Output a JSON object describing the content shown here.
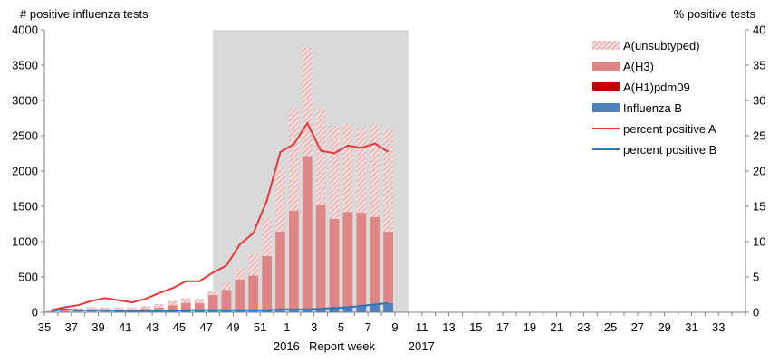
{
  "chart_data": {
    "type": "bar",
    "left_axis_title": "# positive influenza tests",
    "right_axis_title": "% positive tests",
    "xlabel": "Report  week",
    "year_labels": [
      "2016",
      "2017"
    ],
    "ylim": [
      0,
      4000
    ],
    "y_ticks": [
      0,
      500,
      1000,
      1500,
      2000,
      2500,
      3000,
      3500,
      4000
    ],
    "y2lim": [
      0,
      40
    ],
    "y2_ticks": [
      0,
      5,
      10,
      15,
      20,
      25,
      30,
      35,
      40
    ],
    "x_tick_labels": [
      "35",
      "37",
      "39",
      "41",
      "43",
      "45",
      "47",
      "49",
      "51",
      "1",
      "3",
      "5",
      "7",
      "9",
      "11",
      "13",
      "15",
      "17",
      "19",
      "21",
      "23",
      "25",
      "27",
      "29",
      "31",
      "33"
    ],
    "weeks": [
      "35",
      "36",
      "37",
      "38",
      "39",
      "40",
      "41",
      "42",
      "43",
      "44",
      "45",
      "46",
      "47",
      "48",
      "49",
      "50",
      "51",
      "52",
      "1",
      "2",
      "3",
      "4",
      "5",
      "6",
      "7",
      "8",
      "9",
      "10",
      "11",
      "12",
      "13",
      "14",
      "15",
      "16",
      "17",
      "18",
      "19",
      "20",
      "21",
      "22",
      "23",
      "24",
      "25",
      "26",
      "27",
      "28",
      "29",
      "30",
      "31",
      "32",
      "33",
      "34"
    ],
    "shaded_region": [
      "47",
      "10"
    ],
    "series": [
      {
        "name": "A(unsubtyped)",
        "kind": "bar",
        "color": "#d99694",
        "values": [
          15,
          20,
          25,
          35,
          30,
          30,
          30,
          40,
          50,
          60,
          70,
          60,
          60,
          100,
          150,
          300,
          550,
          900,
          1450,
          1530,
          1350,
          1320,
          1250,
          1200,
          1300,
          1450,
          null,
          null,
          null,
          null,
          null,
          null,
          null,
          null,
          null,
          null,
          null,
          null,
          null,
          null,
          null,
          null,
          null,
          null,
          null,
          null,
          null,
          null,
          null,
          null,
          null,
          null
        ]
      },
      {
        "name": "A(H3)",
        "kind": "bar",
        "color": "#de8585",
        "values": [
          10,
          15,
          25,
          30,
          30,
          30,
          30,
          40,
          50,
          80,
          100,
          100,
          220,
          290,
          440,
          490,
          770,
          1100,
          1400,
          2170,
          1470,
          1260,
          1350,
          1320,
          1250,
          1010,
          null,
          null,
          null,
          null,
          null,
          null,
          null,
          null,
          null,
          null,
          null,
          null,
          null,
          null,
          null,
          null,
          null,
          null,
          null,
          null,
          null,
          null,
          null,
          null,
          null,
          null
        ]
      },
      {
        "name": "A(H1)pdm09",
        "kind": "bar",
        "color": "#c00000",
        "values": [
          0,
          0,
          0,
          0,
          0,
          0,
          0,
          0,
          0,
          0,
          0,
          0,
          0,
          0,
          0,
          0,
          0,
          0,
          0,
          0,
          0,
          0,
          0,
          0,
          0,
          0,
          null,
          null,
          null,
          null,
          null,
          null,
          null,
          null,
          null,
          null,
          null,
          null,
          null,
          null,
          null,
          null,
          null,
          null,
          null,
          null,
          null,
          null,
          null,
          null,
          null,
          null
        ]
      },
      {
        "name": "Influenza B",
        "kind": "bar",
        "color": "#4f81bd",
        "values": [
          5,
          10,
          10,
          10,
          10,
          10,
          10,
          10,
          15,
          20,
          30,
          30,
          25,
          25,
          25,
          30,
          25,
          40,
          40,
          40,
          50,
          60,
          70,
          90,
          100,
          130,
          null,
          null,
          null,
          null,
          null,
          null,
          null,
          null,
          null,
          null,
          null,
          null,
          null,
          null,
          null,
          null,
          null,
          null,
          null,
          null,
          null,
          null,
          null,
          null,
          null,
          null
        ]
      },
      {
        "name": "percent positive A",
        "kind": "line",
        "color": "#e03a3a",
        "values": [
          0.3,
          0.7,
          1.0,
          1.6,
          2.0,
          1.7,
          1.4,
          1.9,
          2.7,
          3.4,
          4.4,
          4.4,
          5.6,
          6.6,
          9.6,
          11.2,
          15.8,
          22.7,
          23.8,
          26.8,
          22.9,
          22.5,
          23.6,
          23.3,
          23.9,
          22.7,
          null,
          null,
          null,
          null,
          null,
          null,
          null,
          null,
          null,
          null,
          null,
          null,
          null,
          null,
          null,
          null,
          null,
          null,
          null,
          null,
          null,
          null,
          null,
          null,
          null,
          null
        ]
      },
      {
        "name": "percent positive B",
        "kind": "line",
        "color": "#2e75b6",
        "values": [
          0.2,
          0.4,
          0.3,
          0.3,
          0.3,
          0.2,
          0.2,
          0.2,
          0.2,
          0.2,
          0.3,
          0.3,
          0.3,
          0.3,
          0.3,
          0.3,
          0.3,
          0.4,
          0.4,
          0.4,
          0.5,
          0.6,
          0.7,
          0.9,
          1.1,
          1.3,
          null,
          null,
          null,
          null,
          null,
          null,
          null,
          null,
          null,
          null,
          null,
          null,
          null,
          null,
          null,
          null,
          null,
          null,
          null,
          null,
          null,
          null,
          null,
          null,
          null,
          null
        ]
      }
    ],
    "legend_position": "top-right",
    "grid": false
  }
}
